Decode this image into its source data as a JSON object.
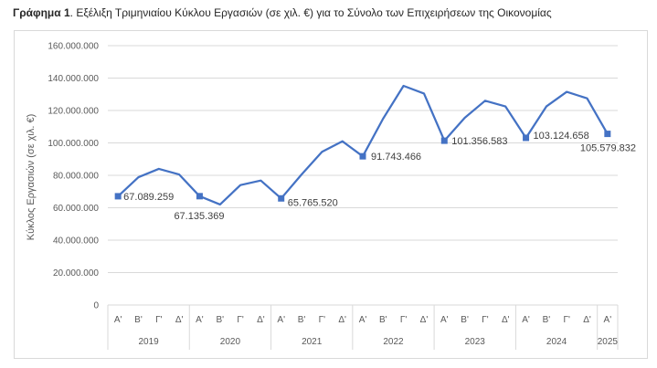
{
  "title": {
    "prefix": "Γράφημα 1",
    "text": ". Εξέλιξη Τριμηνιαίου Κύκλου Εργασιών (σε χιλ. €) για το Σύνολο των Επιχειρήσεων της Οικονομίας"
  },
  "chart_data": {
    "type": "line",
    "title": "Γράφημα 1. Εξέλιξη Τριμηνιαίου Κύκλου Εργασιών (σε χιλ. €) για το Σύνολο των Επιχειρήσεων της Οικονομίας",
    "xlabel": "",
    "ylabel": "Κύκλος Εργασιών (σε χιλ. €)",
    "ylim": [
      0,
      160000000
    ],
    "yticks": [
      0,
      20000000,
      40000000,
      60000000,
      80000000,
      100000000,
      120000000,
      140000000,
      160000000
    ],
    "ytick_labels": [
      "0",
      "20.000.000",
      "40.000.000",
      "60.000.000",
      "80.000.000",
      "100.000.000",
      "120.000.000",
      "140.000.000",
      "160.000.000"
    ],
    "grid": true,
    "line_color": "#4472c4",
    "quarters": [
      "Α'",
      "Β'",
      "Γ'",
      "Δ'",
      "Α'",
      "Β'",
      "Γ'",
      "Δ'",
      "Α'",
      "Β'",
      "Γ'",
      "Δ'",
      "Α'",
      "Β'",
      "Γ'",
      "Δ'",
      "Α'",
      "Β'",
      "Γ'",
      "Δ'",
      "Α'",
      "Β'",
      "Γ'",
      "Δ'",
      "Α'"
    ],
    "years": [
      {
        "label": "2019",
        "count": 4
      },
      {
        "label": "2020",
        "count": 4
      },
      {
        "label": "2021",
        "count": 4
      },
      {
        "label": "2022",
        "count": 4
      },
      {
        "label": "2023",
        "count": 4
      },
      {
        "label": "2024",
        "count": 4
      },
      {
        "label": "2025",
        "count": 1
      }
    ],
    "values": [
      67089259,
      78800000,
      84000000,
      80500000,
      67135369,
      62000000,
      74000000,
      76800000,
      65765520,
      80500000,
      94500000,
      101000000,
      91743466,
      115000000,
      135200000,
      130500000,
      101356583,
      115500000,
      126000000,
      122500000,
      103124658,
      122500000,
      131500000,
      127500000,
      105579832
    ],
    "data_labels": [
      {
        "index": 0,
        "text": "67.089.259"
      },
      {
        "index": 4,
        "text": "67.135.369"
      },
      {
        "index": 8,
        "text": "65.765.520"
      },
      {
        "index": 12,
        "text": "91.743.466"
      },
      {
        "index": 16,
        "text": "101.356.583"
      },
      {
        "index": 20,
        "text": "103.124.658"
      },
      {
        "index": 24,
        "text": "105.579.832"
      }
    ]
  }
}
